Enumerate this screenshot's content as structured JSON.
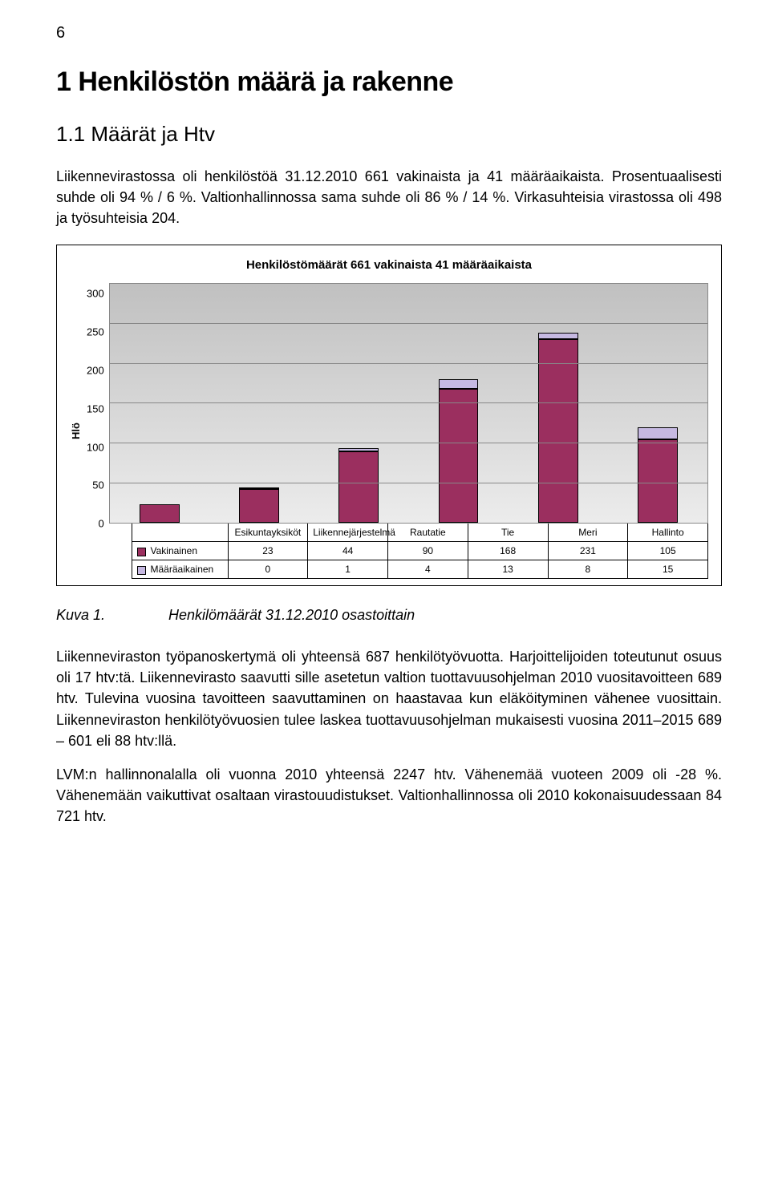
{
  "page_number": "6",
  "heading1": "1   Henkilöstön määrä ja rakenne",
  "heading2": "1.1   Määrät ja Htv",
  "para1": "Liikennevirastossa oli henkilöstöä 31.12.2010 661 vakinaista ja 41 määräaikaista. Prosentuaalisesti suhde oli 94 % / 6 %. Valtionhallinnossa sama suhde oli 86 % / 14 %. Virkasuhteisia virastossa oli 498 ja työsuhteisia 204.",
  "chart": {
    "type": "stacked-bar",
    "title": "Henkilöstömäärät  661 vakinaista 41 määräaikaista",
    "ylabel": "Hlö",
    "ylim": [
      0,
      300
    ],
    "ytick_step": 50,
    "yticks": [
      0,
      50,
      100,
      150,
      200,
      250,
      300
    ],
    "background_gradient": [
      "#c0c0c0",
      "#ececec"
    ],
    "grid_color": "#888888",
    "categories": [
      "Esikuntayksiköt",
      "Liikennejärjestelmä",
      "Rautatie",
      "Tie",
      "Meri",
      "Hallinto"
    ],
    "series": [
      {
        "name": "Vakinainen",
        "color": "#9b2f5f",
        "values": [
          23,
          44,
          90,
          168,
          231,
          105
        ]
      },
      {
        "name": "Määräaikainen",
        "color": "#c6b9e2",
        "values": [
          0,
          1,
          4,
          13,
          8,
          15
        ]
      }
    ],
    "title_fontsize": 15,
    "label_fontsize": 13
  },
  "caption": {
    "label": "Kuva 1.",
    "text": "Henkilömäärät 31.12.2010 osastoittain"
  },
  "para2": "Liikenneviraston työpanoskertymä oli yhteensä 687 henkilötyövuotta. Harjoittelijoiden toteutunut osuus oli 17 htv:tä. Liikennevirasto saavutti sille asetetun valtion tuottavuusohjelman 2010 vuositavoitteen 689 htv. Tulevina vuosina tavoitteen saavuttaminen on haastavaa kun eläköityminen vähenee vuosittain. Liikenneviraston henkilötyövuosien tulee laskea tuottavuusohjelman mukaisesti vuosina 2011–2015  689 – 601 eli 88 htv:llä.",
  "para3": "LVM:n hallinnonalalla oli vuonna 2010 yhteensä 2247 htv. Vähenemää vuoteen 2009 oli -28 %. Vähenemään vaikuttivat osaltaan virastouudistukset. Valtionhallinnossa oli 2010 kokonaisuudessaan 84 721 htv."
}
